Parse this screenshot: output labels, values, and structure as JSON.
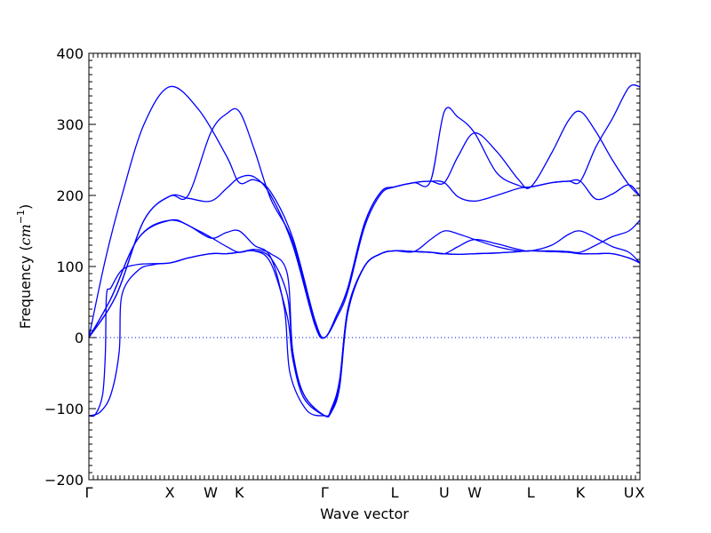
{
  "chart_data": {
    "type": "line",
    "xlabel": "Wave vector",
    "ylabel_prefix": "Frequency (",
    "ylabel_unit": "cm",
    "ylabel_exp": "−1",
    "ylabel_suffix": ")",
    "ylim": [
      -200,
      400
    ],
    "xlim": [
      0,
      1
    ],
    "yticks": [
      -200,
      -100,
      0,
      100,
      200,
      300,
      400
    ],
    "ytick_labels": [
      "−200",
      "−100",
      "0",
      "100",
      "200",
      "300",
      "400"
    ],
    "zero_line": true,
    "x_points": [
      {
        "label": "Γ",
        "x": 0.0
      },
      {
        "label": "X",
        "x": 0.147
      },
      {
        "label": "W",
        "x": 0.221
      },
      {
        "label": "K",
        "x": 0.273
      },
      {
        "label": "Γ",
        "x": 0.428
      },
      {
        "label": "L",
        "x": 0.555
      },
      {
        "label": "U",
        "x": 0.645
      },
      {
        "label": "W",
        "x": 0.7
      },
      {
        "label": "L",
        "x": 0.802
      },
      {
        "label": "K",
        "x": 0.892
      },
      {
        "label": "U",
        "x": 0.98
      },
      {
        "label": "X",
        "x": 1.0
      }
    ],
    "series": [
      {
        "values": [
          [
            0,
            0
          ],
          [
            0.03,
            110
          ],
          [
            0.06,
            200
          ],
          [
            0.1,
            300
          ],
          [
            0.147,
            353
          ],
          [
            0.2,
            320
          ],
          [
            0.25,
            255
          ],
          [
            0.273,
            218
          ],
          [
            0.3,
            222
          ],
          [
            0.33,
            205
          ],
          [
            0.37,
            140
          ],
          [
            0.41,
            25
          ],
          [
            0.428,
            0
          ],
          [
            0.45,
            32
          ],
          [
            0.47,
            70
          ],
          [
            0.5,
            160
          ],
          [
            0.53,
            205
          ],
          [
            0.555,
            212
          ],
          [
            0.59,
            218
          ],
          [
            0.62,
            220
          ],
          [
            0.645,
            218
          ],
          [
            0.67,
            255
          ],
          [
            0.7,
            288
          ],
          [
            0.74,
            262
          ],
          [
            0.78,
            222
          ],
          [
            0.802,
            212
          ],
          [
            0.84,
            260
          ],
          [
            0.87,
            305
          ],
          [
            0.892,
            318
          ],
          [
            0.92,
            290
          ],
          [
            0.95,
            250
          ],
          [
            0.98,
            215
          ],
          [
            1.0,
            199
          ]
        ]
      },
      {
        "values": [
          [
            0,
            0
          ],
          [
            0.05,
            60
          ],
          [
            0.1,
            165
          ],
          [
            0.147,
            199
          ],
          [
            0.18,
            200
          ],
          [
            0.221,
            288
          ],
          [
            0.25,
            315
          ],
          [
            0.273,
            318
          ],
          [
            0.3,
            265
          ],
          [
            0.33,
            195
          ],
          [
            0.37,
            135
          ],
          [
            0.41,
            20
          ],
          [
            0.428,
            0
          ],
          [
            0.45,
            32
          ],
          [
            0.47,
            70
          ],
          [
            0.5,
            160
          ],
          [
            0.53,
            205
          ],
          [
            0.555,
            212
          ],
          [
            0.59,
            218
          ],
          [
            0.62,
            220
          ],
          [
            0.645,
            318
          ],
          [
            0.67,
            310
          ],
          [
            0.7,
            288
          ],
          [
            0.74,
            232
          ],
          [
            0.78,
            214
          ],
          [
            0.802,
            212
          ],
          [
            0.84,
            218
          ],
          [
            0.87,
            220
          ],
          [
            0.892,
            220
          ],
          [
            0.92,
            268
          ],
          [
            0.95,
            308
          ],
          [
            0.98,
            352
          ],
          [
            1.0,
            353
          ]
        ]
      },
      {
        "values": [
          [
            0,
            0
          ],
          [
            0.05,
            60
          ],
          [
            0.1,
            165
          ],
          [
            0.147,
            199
          ],
          [
            0.18,
            196
          ],
          [
            0.221,
            192
          ],
          [
            0.25,
            210
          ],
          [
            0.273,
            225
          ],
          [
            0.3,
            226
          ],
          [
            0.33,
            200
          ],
          [
            0.37,
            130
          ],
          [
            0.41,
            18
          ],
          [
            0.428,
            0
          ],
          [
            0.45,
            28
          ],
          [
            0.47,
            65
          ],
          [
            0.5,
            155
          ],
          [
            0.53,
            202
          ],
          [
            0.555,
            212
          ],
          [
            0.59,
            218
          ],
          [
            0.62,
            220
          ],
          [
            0.645,
            218
          ],
          [
            0.67,
            198
          ],
          [
            0.7,
            192
          ],
          [
            0.74,
            200
          ],
          [
            0.78,
            210
          ],
          [
            0.802,
            212
          ],
          [
            0.84,
            218
          ],
          [
            0.87,
            220
          ],
          [
            0.892,
            220
          ],
          [
            0.92,
            195
          ],
          [
            0.95,
            202
          ],
          [
            0.98,
            215
          ],
          [
            1.0,
            199
          ]
        ]
      },
      {
        "values": [
          [
            0,
            0
          ],
          [
            0.04,
            55
          ],
          [
            0.09,
            140
          ],
          [
            0.147,
            165
          ],
          [
            0.2,
            150
          ],
          [
            0.25,
            128
          ],
          [
            0.273,
            120
          ],
          [
            0.3,
            124
          ],
          [
            0.33,
            118
          ],
          [
            0.36,
            90
          ],
          [
            0.37,
            -20
          ],
          [
            0.39,
            -80
          ],
          [
            0.428,
            -110
          ],
          [
            0.44,
            -100
          ],
          [
            0.455,
            -60
          ],
          [
            0.47,
            40
          ],
          [
            0.5,
            100
          ],
          [
            0.53,
            118
          ],
          [
            0.555,
            122
          ],
          [
            0.59,
            121
          ],
          [
            0.62,
            120
          ],
          [
            0.645,
            118
          ],
          [
            0.67,
            128
          ],
          [
            0.7,
            138
          ],
          [
            0.74,
            132
          ],
          [
            0.78,
            124
          ],
          [
            0.802,
            122
          ],
          [
            0.84,
            130
          ],
          [
            0.87,
            145
          ],
          [
            0.892,
            150
          ],
          [
            0.92,
            140
          ],
          [
            0.95,
            128
          ],
          [
            0.98,
            120
          ],
          [
            1.0,
            105
          ]
        ]
      },
      {
        "values": [
          [
            0,
            0
          ],
          [
            0.04,
            55
          ],
          [
            0.09,
            140
          ],
          [
            0.147,
            165
          ],
          [
            0.18,
            158
          ],
          [
            0.221,
            140
          ],
          [
            0.25,
            148
          ],
          [
            0.273,
            150
          ],
          [
            0.3,
            130
          ],
          [
            0.33,
            113
          ],
          [
            0.355,
            40
          ],
          [
            0.365,
            -50
          ],
          [
            0.395,
            -102
          ],
          [
            0.428,
            -110
          ],
          [
            0.44,
            -105
          ],
          [
            0.455,
            -70
          ],
          [
            0.47,
            35
          ],
          [
            0.5,
            100
          ],
          [
            0.53,
            118
          ],
          [
            0.555,
            122
          ],
          [
            0.59,
            121
          ],
          [
            0.62,
            138
          ],
          [
            0.645,
            150
          ],
          [
            0.67,
            146
          ],
          [
            0.7,
            138
          ],
          [
            0.74,
            128
          ],
          [
            0.78,
            122
          ],
          [
            0.802,
            122
          ],
          [
            0.84,
            122
          ],
          [
            0.87,
            121
          ],
          [
            0.892,
            120
          ],
          [
            0.92,
            130
          ],
          [
            0.95,
            142
          ],
          [
            0.98,
            150
          ],
          [
            1.0,
            165
          ]
        ]
      },
      {
        "values": [
          [
            0,
            -110
          ],
          [
            0.02,
            -105
          ],
          [
            0.04,
            -80
          ],
          [
            0.055,
            -20
          ],
          [
            0.06,
            60
          ],
          [
            0.09,
            95
          ],
          [
            0.12,
            103
          ],
          [
            0.147,
            105
          ],
          [
            0.18,
            112
          ],
          [
            0.221,
            118
          ],
          [
            0.25,
            118
          ],
          [
            0.273,
            120
          ],
          [
            0.3,
            122
          ],
          [
            0.33,
            112
          ],
          [
            0.36,
            60
          ],
          [
            0.37,
            -20
          ],
          [
            0.39,
            -80
          ],
          [
            0.428,
            -110
          ],
          [
            0.44,
            -103
          ],
          [
            0.455,
            -60
          ],
          [
            0.47,
            40
          ],
          [
            0.5,
            100
          ],
          [
            0.53,
            118
          ],
          [
            0.555,
            122
          ],
          [
            0.59,
            121
          ],
          [
            0.62,
            120
          ],
          [
            0.645,
            118
          ],
          [
            0.67,
            117
          ],
          [
            0.7,
            118
          ],
          [
            0.74,
            119
          ],
          [
            0.78,
            121
          ],
          [
            0.802,
            122
          ],
          [
            0.84,
            121
          ],
          [
            0.87,
            120
          ],
          [
            0.892,
            118
          ],
          [
            0.92,
            118
          ],
          [
            0.95,
            118
          ],
          [
            0.98,
            112
          ],
          [
            1.0,
            105
          ]
        ]
      },
      {
        "values": [
          [
            0,
            -110
          ],
          [
            0.012,
            -108
          ],
          [
            0.025,
            -80
          ],
          [
            0.03,
            -20
          ],
          [
            0.032,
            60
          ],
          [
            0.04,
            70
          ],
          [
            0.06,
            95
          ],
          [
            0.09,
            103
          ],
          [
            0.147,
            105
          ],
          [
            0.18,
            112
          ],
          [
            0.221,
            118
          ],
          [
            0.25,
            118
          ],
          [
            0.273,
            120
          ],
          [
            0.3,
            122
          ],
          [
            0.33,
            105
          ],
          [
            0.36,
            30
          ],
          [
            0.37,
            -30
          ],
          [
            0.39,
            -85
          ],
          [
            0.428,
            -110
          ],
          [
            0.44,
            -103
          ],
          [
            0.455,
            -65
          ],
          [
            0.47,
            40
          ],
          [
            0.5,
            100
          ],
          [
            0.53,
            118
          ],
          [
            0.555,
            122
          ],
          [
            0.59,
            121
          ],
          [
            0.62,
            120
          ],
          [
            0.645,
            118
          ],
          [
            0.67,
            117
          ],
          [
            0.7,
            118
          ],
          [
            0.74,
            119
          ],
          [
            0.78,
            121
          ],
          [
            0.802,
            122
          ],
          [
            0.84,
            121
          ],
          [
            0.87,
            120
          ],
          [
            0.892,
            118
          ],
          [
            0.92,
            118
          ],
          [
            0.95,
            118
          ],
          [
            0.98,
            112
          ],
          [
            1.0,
            105
          ]
        ]
      }
    ]
  }
}
